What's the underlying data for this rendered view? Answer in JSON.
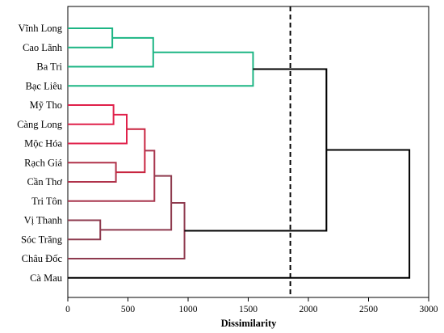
{
  "chart_data": {
    "type": "dendrogram",
    "orientation": "horizontal",
    "xlabel": "Dissimilarity",
    "xlim": [
      0,
      3000
    ],
    "xticks": [
      0,
      500,
      1000,
      1500,
      2000,
      2500,
      3000
    ],
    "grid": false,
    "cut_line": 1850,
    "leaves": [
      "Vĩnh Long",
      "Cao Lãnh",
      "Ba Tri",
      "Bạc Liêu",
      "Mỹ Tho",
      "Càng Long",
      "Mộc Hóa",
      "Rạch Giá",
      "Cần Thơ",
      "Tri Tôn",
      "Vị Thanh",
      "Sóc Trăng",
      "Châu Đốc",
      "Cà Mau"
    ],
    "merges": [
      {
        "id": "m1",
        "left": "Vĩnh Long",
        "right": "Cao Lãnh",
        "height": 370,
        "color": "#1db584"
      },
      {
        "id": "m2",
        "left": "m1",
        "right": "Ba Tri",
        "height": 710,
        "color": "#1db584"
      },
      {
        "id": "m3",
        "left": "m2",
        "right": "Bạc Liêu",
        "height": 1540,
        "color": "#1db584"
      },
      {
        "id": "m4",
        "left": "Mỹ Tho",
        "right": "Càng Long",
        "height": 380,
        "color": "#e0204a"
      },
      {
        "id": "m5",
        "left": "m4",
        "right": "Mộc Hóa",
        "height": 490,
        "color": "#e0204a"
      },
      {
        "id": "m6",
        "left": "Rạch Giá",
        "right": "Cần Thơ",
        "height": 400,
        "color": "#b0324a"
      },
      {
        "id": "m7",
        "left": "m5",
        "right": "m6",
        "height": 640,
        "color": "#c8243f"
      },
      {
        "id": "m8",
        "left": "m7",
        "right": "Tri Tôn",
        "height": 720,
        "color": "#a8364e"
      },
      {
        "id": "m9",
        "left": "Vị Thanh",
        "right": "Sóc Trăng",
        "height": 270,
        "color": "#8e3a4e"
      },
      {
        "id": "m10",
        "left": "m8",
        "right": "m9",
        "height": 860,
        "color": "#8e3a4e"
      },
      {
        "id": "m11",
        "left": "m10",
        "right": "Châu Đốc",
        "height": 970,
        "color": "#8e3a4e"
      },
      {
        "id": "m12",
        "left": "m3",
        "right": "m11",
        "height": 2150,
        "color": "#000000"
      },
      {
        "id": "m13",
        "left": "m12",
        "right": "Cà Mau",
        "height": 2840,
        "color": "#000000"
      }
    ]
  }
}
